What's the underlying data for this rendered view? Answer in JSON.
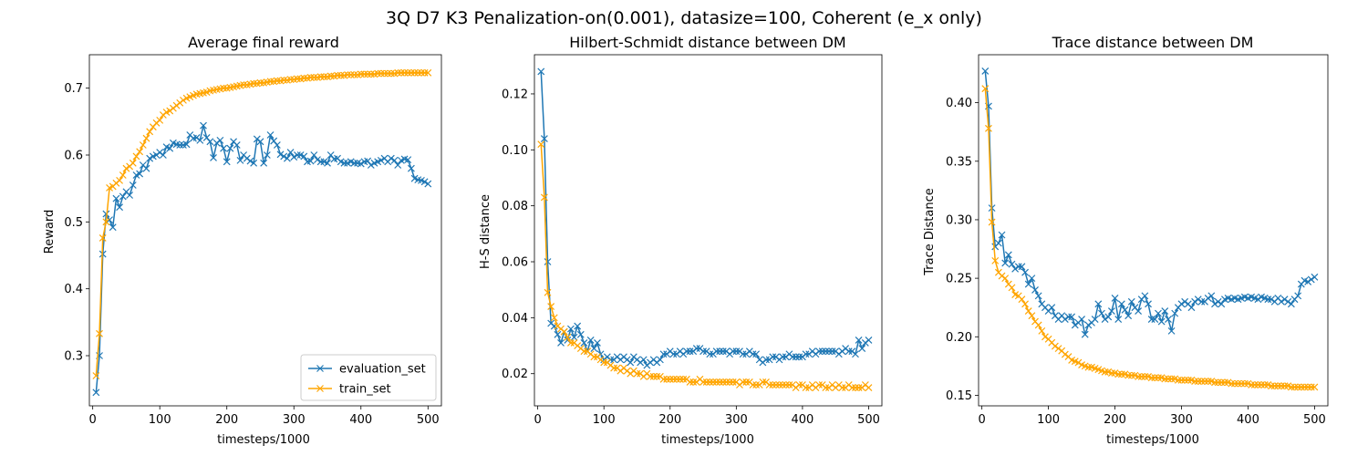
{
  "figure_title": "3Q D7 K3 Penalization-on(0.001), datasize=100, Coherent (e_x only)",
  "colors": {
    "evaluation_set": "#1f77b4",
    "train_set": "#ffa500"
  },
  "chart_data": [
    {
      "type": "line",
      "title": "Average final reward",
      "xlabel": "timesteps/1000",
      "ylabel": "Reward",
      "xlim": [
        -5,
        520
      ],
      "ylim": [
        0.225,
        0.75
      ],
      "xticks": [
        0,
        100,
        200,
        300,
        400,
        500
      ],
      "yticks": [
        0.3,
        0.4,
        0.5,
        0.6,
        0.7
      ],
      "ytick_labels": [
        "0.3",
        "0.4",
        "0.5",
        "0.6",
        "0.7"
      ],
      "grid": false,
      "marker": "x",
      "legend": "lower-right",
      "x": [
        5,
        10,
        15,
        20,
        25,
        30,
        35,
        40,
        45,
        50,
        55,
        60,
        65,
        70,
        75,
        80,
        85,
        90,
        95,
        100,
        105,
        110,
        115,
        120,
        125,
        130,
        135,
        140,
        145,
        150,
        155,
        160,
        165,
        170,
        175,
        180,
        185,
        190,
        195,
        200,
        205,
        210,
        215,
        220,
        225,
        230,
        235,
        240,
        245,
        250,
        255,
        260,
        265,
        270,
        275,
        280,
        285,
        290,
        295,
        300,
        305,
        310,
        315,
        320,
        325,
        330,
        335,
        340,
        345,
        350,
        355,
        360,
        365,
        370,
        375,
        380,
        385,
        390,
        395,
        400,
        405,
        410,
        415,
        420,
        425,
        430,
        435,
        440,
        445,
        450,
        455,
        460,
        465,
        470,
        475,
        480,
        485,
        490,
        495,
        500
      ],
      "series": [
        {
          "name": "evaluation_set",
          "values": [
            0.245,
            0.3,
            0.452,
            0.512,
            0.503,
            0.492,
            0.535,
            0.522,
            0.538,
            0.545,
            0.54,
            0.555,
            0.57,
            0.572,
            0.585,
            0.58,
            0.595,
            0.598,
            0.6,
            0.604,
            0.6,
            0.612,
            0.61,
            0.618,
            0.616,
            0.615,
            0.615,
            0.616,
            0.63,
            0.625,
            0.626,
            0.622,
            0.644,
            0.626,
            0.62,
            0.596,
            0.618,
            0.622,
            0.61,
            0.59,
            0.61,
            0.62,
            0.615,
            0.592,
            0.6,
            0.595,
            0.591,
            0.588,
            0.624,
            0.62,
            0.588,
            0.6,
            0.63,
            0.621,
            0.615,
            0.601,
            0.598,
            0.595,
            0.604,
            0.597,
            0.6,
            0.6,
            0.598,
            0.59,
            0.591,
            0.6,
            0.593,
            0.59,
            0.59,
            0.588,
            0.6,
            0.594,
            0.595,
            0.59,
            0.588,
            0.588,
            0.59,
            0.588,
            0.588,
            0.587,
            0.59,
            0.591,
            0.585,
            0.588,
            0.59,
            0.592,
            0.595,
            0.59,
            0.595,
            0.592,
            0.585,
            0.592,
            0.594,
            0.593,
            0.58,
            0.565,
            0.563,
            0.562,
            0.56,
            0.557
          ]
        },
        {
          "name": "train_set",
          "values": [
            0.27,
            0.333,
            0.476,
            0.5,
            0.551,
            0.553,
            0.558,
            0.562,
            0.57,
            0.58,
            0.583,
            0.588,
            0.598,
            0.605,
            0.615,
            0.625,
            0.635,
            0.642,
            0.648,
            0.652,
            0.66,
            0.664,
            0.666,
            0.67,
            0.674,
            0.678,
            0.682,
            0.685,
            0.687,
            0.689,
            0.691,
            0.692,
            0.693,
            0.694,
            0.696,
            0.697,
            0.698,
            0.699,
            0.7,
            0.7,
            0.701,
            0.702,
            0.703,
            0.704,
            0.705,
            0.705,
            0.706,
            0.707,
            0.707,
            0.708,
            0.708,
            0.709,
            0.71,
            0.71,
            0.711,
            0.711,
            0.712,
            0.712,
            0.713,
            0.713,
            0.714,
            0.714,
            0.715,
            0.715,
            0.716,
            0.716,
            0.716,
            0.717,
            0.717,
            0.717,
            0.718,
            0.718,
            0.719,
            0.719,
            0.719,
            0.72,
            0.72,
            0.72,
            0.72,
            0.721,
            0.721,
            0.721,
            0.721,
            0.721,
            0.722,
            0.722,
            0.722,
            0.722,
            0.722,
            0.722,
            0.723,
            0.723,
            0.723,
            0.723,
            0.723,
            0.723,
            0.723,
            0.723,
            0.723,
            0.723
          ]
        }
      ]
    },
    {
      "type": "line",
      "title": "Hilbert-Schmidt distance between DM",
      "xlabel": "timesteps/1000",
      "ylabel": "H-S distance",
      "xlim": [
        -5,
        520
      ],
      "ylim": [
        0.0085,
        0.134
      ],
      "xticks": [
        0,
        100,
        200,
        300,
        400,
        500
      ],
      "yticks": [
        0.02,
        0.04,
        0.06,
        0.08,
        0.1,
        0.12
      ],
      "ytick_labels": [
        "0.02",
        "0.04",
        "0.06",
        "0.08",
        "0.10",
        "0.12"
      ],
      "grid": false,
      "marker": "x",
      "x": [
        5,
        10,
        15,
        20,
        25,
        30,
        35,
        40,
        45,
        50,
        55,
        60,
        65,
        70,
        75,
        80,
        85,
        90,
        95,
        100,
        105,
        110,
        115,
        120,
        125,
        130,
        135,
        140,
        145,
        150,
        155,
        160,
        165,
        170,
        175,
        180,
        185,
        190,
        195,
        200,
        205,
        210,
        215,
        220,
        225,
        230,
        235,
        240,
        245,
        250,
        255,
        260,
        265,
        270,
        275,
        280,
        285,
        290,
        295,
        300,
        305,
        310,
        315,
        320,
        325,
        330,
        335,
        340,
        345,
        350,
        355,
        360,
        365,
        370,
        375,
        380,
        385,
        390,
        395,
        400,
        405,
        410,
        415,
        420,
        425,
        430,
        435,
        440,
        445,
        450,
        455,
        460,
        465,
        470,
        475,
        480,
        485,
        490,
        495,
        500
      ],
      "series": [
        {
          "name": "evaluation_set",
          "values": [
            0.128,
            0.104,
            0.06,
            0.038,
            0.037,
            0.034,
            0.031,
            0.035,
            0.032,
            0.036,
            0.033,
            0.037,
            0.034,
            0.031,
            0.028,
            0.032,
            0.029,
            0.031,
            0.027,
            0.025,
            0.026,
            0.025,
            0.025,
            0.026,
            0.025,
            0.026,
            0.025,
            0.024,
            0.026,
            0.025,
            0.024,
            0.025,
            0.023,
            0.024,
            0.025,
            0.024,
            0.025,
            0.027,
            0.027,
            0.028,
            0.027,
            0.027,
            0.028,
            0.027,
            0.028,
            0.028,
            0.028,
            0.029,
            0.029,
            0.028,
            0.028,
            0.027,
            0.027,
            0.028,
            0.028,
            0.028,
            0.028,
            0.027,
            0.028,
            0.028,
            0.028,
            0.027,
            0.027,
            0.028,
            0.027,
            0.027,
            0.025,
            0.024,
            0.025,
            0.025,
            0.026,
            0.026,
            0.025,
            0.026,
            0.026,
            0.027,
            0.026,
            0.026,
            0.026,
            0.026,
            0.027,
            0.027,
            0.028,
            0.027,
            0.028,
            0.028,
            0.028,
            0.028,
            0.028,
            0.028,
            0.027,
            0.028,
            0.029,
            0.028,
            0.028,
            0.027,
            0.032,
            0.029,
            0.031,
            0.032
          ]
        },
        {
          "name": "train_set",
          "values": [
            0.102,
            0.083,
            0.049,
            0.044,
            0.04,
            0.037,
            0.036,
            0.035,
            0.033,
            0.031,
            0.031,
            0.03,
            0.029,
            0.028,
            0.028,
            0.027,
            0.026,
            0.026,
            0.025,
            0.024,
            0.024,
            0.023,
            0.022,
            0.022,
            0.021,
            0.022,
            0.021,
            0.02,
            0.021,
            0.02,
            0.02,
            0.019,
            0.02,
            0.019,
            0.019,
            0.019,
            0.019,
            0.018,
            0.018,
            0.018,
            0.018,
            0.018,
            0.018,
            0.018,
            0.018,
            0.017,
            0.017,
            0.017,
            0.018,
            0.017,
            0.017,
            0.017,
            0.017,
            0.017,
            0.017,
            0.017,
            0.017,
            0.017,
            0.017,
            0.017,
            0.016,
            0.017,
            0.017,
            0.017,
            0.016,
            0.016,
            0.016,
            0.017,
            0.017,
            0.016,
            0.016,
            0.016,
            0.016,
            0.016,
            0.016,
            0.016,
            0.016,
            0.015,
            0.016,
            0.016,
            0.015,
            0.015,
            0.016,
            0.015,
            0.016,
            0.016,
            0.015,
            0.015,
            0.016,
            0.015,
            0.016,
            0.015,
            0.015,
            0.016,
            0.015,
            0.015,
            0.015,
            0.015,
            0.016,
            0.015
          ]
        }
      ]
    },
    {
      "type": "line",
      "title": "Trace distance between DM",
      "xlabel": "timesteps/1000",
      "ylabel": "Trace Distance",
      "xlim": [
        -5,
        520
      ],
      "ylim": [
        0.141,
        0.441
      ],
      "xticks": [
        0,
        100,
        200,
        300,
        400,
        500
      ],
      "yticks": [
        0.15,
        0.2,
        0.25,
        0.3,
        0.35,
        0.4
      ],
      "ytick_labels": [
        "0.15",
        "0.20",
        "0.25",
        "0.30",
        "0.35",
        "0.40"
      ],
      "grid": false,
      "marker": "x",
      "x": [
        5,
        10,
        15,
        20,
        25,
        30,
        35,
        40,
        45,
        50,
        55,
        60,
        65,
        70,
        75,
        80,
        85,
        90,
        95,
        100,
        105,
        110,
        115,
        120,
        125,
        130,
        135,
        140,
        145,
        150,
        155,
        160,
        165,
        170,
        175,
        180,
        185,
        190,
        195,
        200,
        205,
        210,
        215,
        220,
        225,
        230,
        235,
        240,
        245,
        250,
        255,
        260,
        265,
        270,
        275,
        280,
        285,
        290,
        295,
        300,
        305,
        310,
        315,
        320,
        325,
        330,
        335,
        340,
        345,
        350,
        355,
        360,
        365,
        370,
        375,
        380,
        385,
        390,
        395,
        400,
        405,
        410,
        415,
        420,
        425,
        430,
        435,
        440,
        445,
        450,
        455,
        460,
        465,
        470,
        475,
        480,
        485,
        490,
        495,
        500
      ],
      "series": [
        {
          "name": "evaluation_set",
          "values": [
            0.427,
            0.397,
            0.31,
            0.277,
            0.28,
            0.287,
            0.263,
            0.27,
            0.262,
            0.258,
            0.26,
            0.26,
            0.255,
            0.245,
            0.25,
            0.24,
            0.235,
            0.228,
            0.225,
            0.222,
            0.225,
            0.218,
            0.215,
            0.218,
            0.215,
            0.217,
            0.217,
            0.21,
            0.212,
            0.215,
            0.202,
            0.21,
            0.212,
            0.215,
            0.228,
            0.22,
            0.215,
            0.217,
            0.222,
            0.233,
            0.215,
            0.228,
            0.223,
            0.218,
            0.23,
            0.225,
            0.222,
            0.232,
            0.235,
            0.228,
            0.215,
            0.215,
            0.22,
            0.213,
            0.222,
            0.215,
            0.205,
            0.22,
            0.225,
            0.228,
            0.23,
            0.228,
            0.225,
            0.23,
            0.232,
            0.23,
            0.23,
            0.233,
            0.235,
            0.228,
            0.23,
            0.228,
            0.232,
            0.233,
            0.232,
            0.233,
            0.232,
            0.233,
            0.234,
            0.233,
            0.234,
            0.233,
            0.232,
            0.234,
            0.233,
            0.232,
            0.232,
            0.23,
            0.233,
            0.23,
            0.232,
            0.23,
            0.228,
            0.232,
            0.235,
            0.245,
            0.248,
            0.247,
            0.249,
            0.251
          ]
        },
        {
          "name": "train_set",
          "values": [
            0.412,
            0.378,
            0.298,
            0.265,
            0.255,
            0.252,
            0.25,
            0.245,
            0.242,
            0.236,
            0.235,
            0.232,
            0.228,
            0.222,
            0.218,
            0.213,
            0.21,
            0.205,
            0.2,
            0.198,
            0.195,
            0.192,
            0.19,
            0.188,
            0.185,
            0.183,
            0.18,
            0.179,
            0.178,
            0.176,
            0.175,
            0.174,
            0.174,
            0.173,
            0.172,
            0.171,
            0.17,
            0.17,
            0.169,
            0.169,
            0.168,
            0.168,
            0.168,
            0.167,
            0.167,
            0.167,
            0.166,
            0.166,
            0.166,
            0.166,
            0.165,
            0.165,
            0.165,
            0.165,
            0.164,
            0.164,
            0.164,
            0.164,
            0.163,
            0.163,
            0.163,
            0.163,
            0.163,
            0.162,
            0.162,
            0.162,
            0.162,
            0.162,
            0.162,
            0.161,
            0.161,
            0.161,
            0.161,
            0.161,
            0.16,
            0.16,
            0.16,
            0.16,
            0.16,
            0.16,
            0.159,
            0.159,
            0.159,
            0.159,
            0.159,
            0.159,
            0.158,
            0.158,
            0.158,
            0.158,
            0.158,
            0.158,
            0.157,
            0.157,
            0.157,
            0.157,
            0.157,
            0.157,
            0.157,
            0.157
          ]
        }
      ]
    }
  ]
}
